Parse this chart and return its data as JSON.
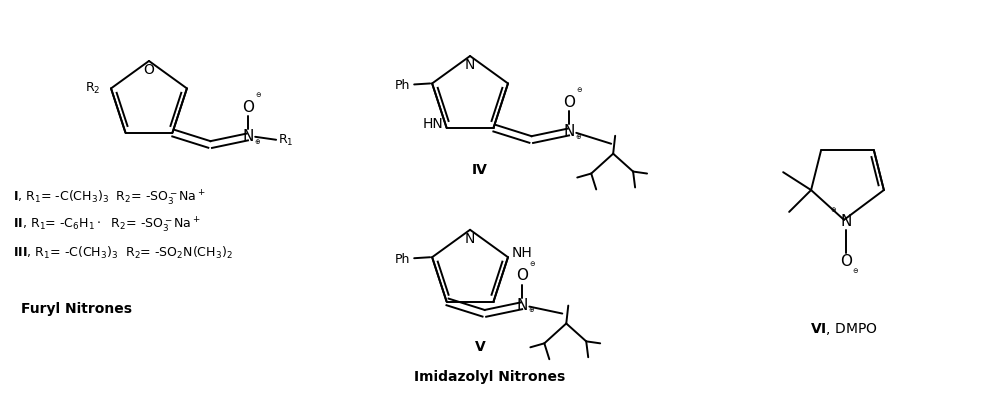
{
  "background_color": "#ffffff",
  "fig_width": 9.81,
  "fig_height": 3.96,
  "dpi": 100,
  "label_furyl": "Furyl Nitrones",
  "label_imidazolyl": "Imidazolyl Nitrones",
  "label_IV": "IV",
  "label_V": "V",
  "label_VI_bold": "VI",
  "label_VI_normal": ", DMPO"
}
